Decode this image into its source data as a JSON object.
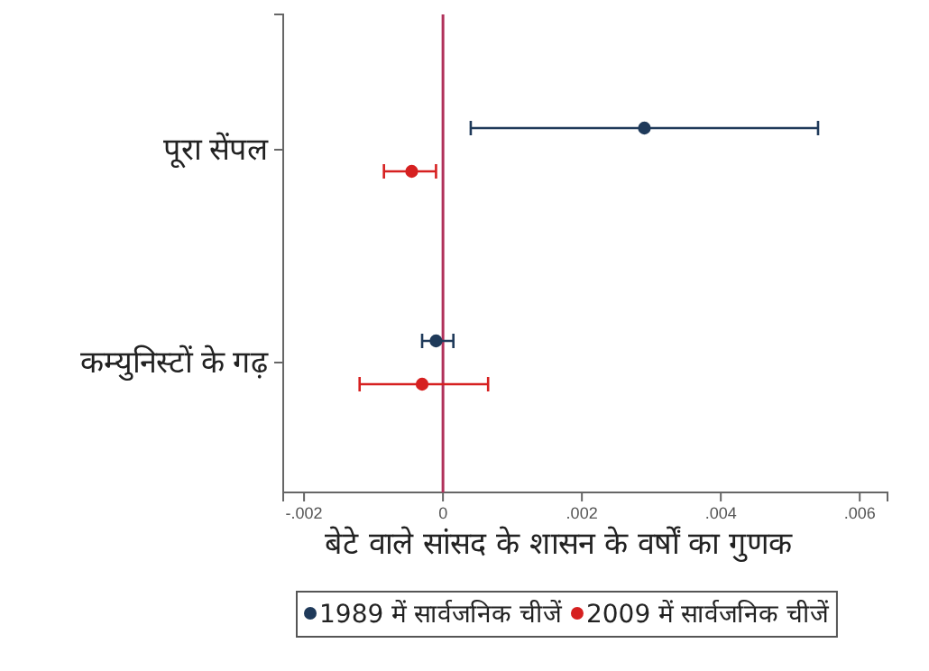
{
  "chart_data": {
    "type": "scatter",
    "orientation": "horizontal",
    "xlabel": "बेटे वाले सांसद के शासन के वर्षों का गुणक",
    "categories": [
      "पूरा सेंपल",
      "कम्युनिस्टों के गढ़"
    ],
    "series": [
      {
        "name": "1989 में सार्वजनिक चीजें",
        "color": "#1f3a5a",
        "values": [
          0.0029,
          -0.0001
        ],
        "errors": [
          [
            0.0004,
            0.0054
          ],
          [
            -0.0003,
            0.00015
          ]
        ]
      },
      {
        "name": "2009 में सार्वजनिक चीजें",
        "color": "#d62020",
        "values": [
          -0.00045,
          -0.0003
        ],
        "errors": [
          [
            -0.00085,
            -0.0001
          ],
          [
            -0.0012,
            0.00065
          ]
        ]
      }
    ],
    "xlim": [
      -0.0023,
      0.0064
    ],
    "xticks": [
      {
        "value": -0.002,
        "label": "-.002"
      },
      0,
      {
        "value": 0.002,
        "label": ".002"
      },
      {
        "value": 0.004,
        "label": ".004"
      },
      {
        "value": 0.006,
        "label": ".006"
      }
    ],
    "ref_lines": [
      {
        "axis": "x",
        "value": 0,
        "color": "#b0305a"
      }
    ],
    "marker": "circle",
    "legend": "bottom"
  }
}
